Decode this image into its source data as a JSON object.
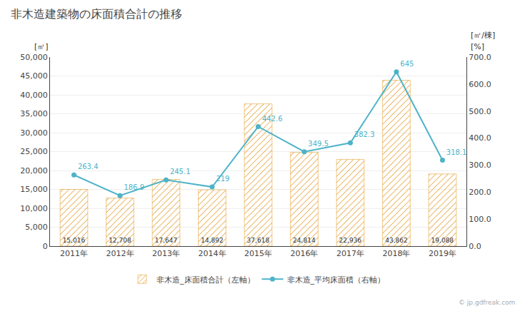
{
  "chart_data": {
    "type": "bar",
    "title": "非木造建築物の床面積合計の推移",
    "categories": [
      "2011年",
      "2012年",
      "2013年",
      "2014年",
      "2015年",
      "2016年",
      "2017年",
      "2018年",
      "2019年"
    ],
    "series": [
      {
        "name": "非木造_床面積合計（左軸）",
        "type": "bar",
        "color": "#f5a623",
        "values": [
          15016,
          12708,
          17647,
          14892,
          37618,
          24814,
          22936,
          43862,
          19088
        ],
        "value_labels": [
          "15,016",
          "12,708",
          "17,647",
          "14,892",
          "37,618",
          "24,814",
          "22,936",
          "43,862",
          "19,088"
        ]
      },
      {
        "name": "非木造_平均床面積（右軸）",
        "type": "line",
        "color": "#4db3c8",
        "marker": "circle",
        "axis": "y2",
        "values": [
          263.4,
          186.9,
          245.1,
          219,
          442.6,
          349.5,
          382.3,
          645,
          318.1
        ]
      }
    ],
    "ylabel": "[㎡]",
    "y2label": "[㎡/棟]",
    "annotations": [
      "[%]",
      "© jp.gdfreak.com"
    ],
    "ylim": [
      0,
      50000
    ],
    "yticks": [
      0,
      {
        "value": 5000,
        "label": "5,000"
      },
      {
        "value": 10000,
        "label": "10,000"
      },
      {
        "value": 15000,
        "label": "15,000"
      },
      {
        "value": 20000,
        "label": "20,000"
      },
      {
        "value": 25000,
        "label": "25,000"
      },
      {
        "value": 30000,
        "label": "30,000"
      },
      {
        "value": 35000,
        "label": "35,000"
      },
      {
        "value": 40000,
        "label": "40,000"
      },
      {
        "value": 45000,
        "label": "45,000"
      },
      {
        "value": 50000,
        "label": "50,000"
      }
    ],
    "y2lim": [
      0,
      700
    ],
    "y2ticks": [
      {
        "value": 0,
        "label": "0.0"
      },
      {
        "value": 100,
        "label": "100.0"
      },
      {
        "value": 200,
        "label": "200.0"
      },
      {
        "value": 300,
        "label": "300.0"
      },
      {
        "value": 400,
        "label": "400.0"
      },
      {
        "value": 500,
        "label": "500.0"
      },
      {
        "value": 600,
        "label": "600.0"
      },
      {
        "value": 700,
        "label": "700.0"
      }
    ],
    "grid": true,
    "legend": "bottom",
    "data_labels": true
  }
}
